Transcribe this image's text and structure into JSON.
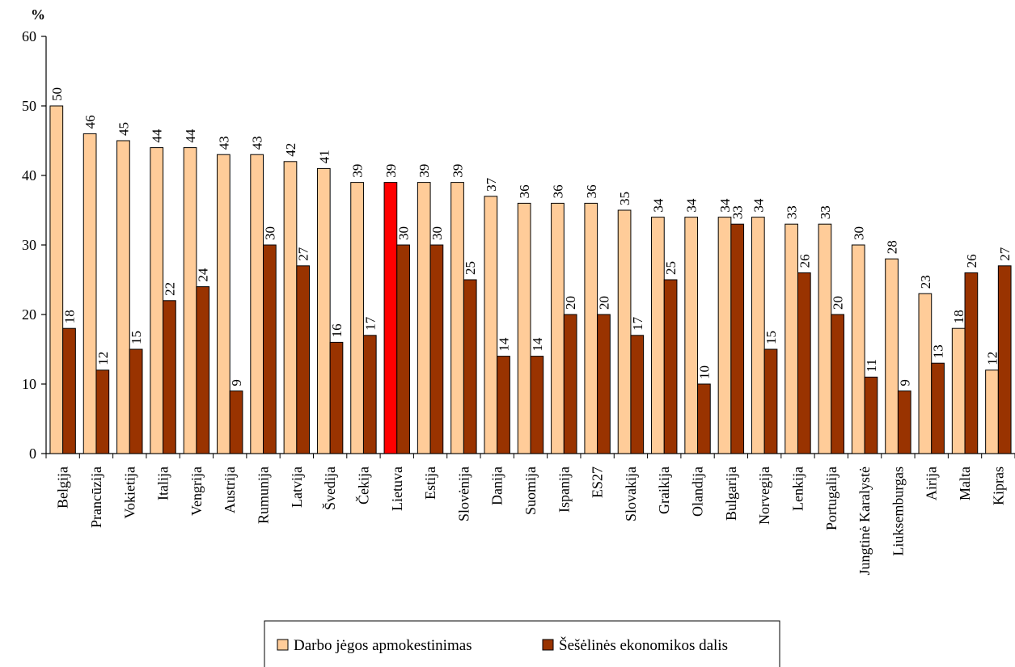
{
  "chart_data": {
    "type": "bar",
    "ylabel": "%",
    "ylim": [
      0,
      60
    ],
    "yticks": [
      0,
      10,
      20,
      30,
      40,
      50,
      60
    ],
    "categories": [
      "Belgija",
      "Prancūzija",
      "Vokietija",
      "Italija",
      "Vengrija",
      "Austrija",
      "Rumunija",
      "Latvija",
      "Švedija",
      "Čekija",
      "Lietuva",
      "Estija",
      "Slovėnija",
      "Danija",
      "Suomija",
      "Ispanija",
      "ES27",
      "Slovakija",
      "Graikija",
      "Olandija",
      "Bulgarija",
      "Norvegija",
      "Lenkija",
      "Portugalija",
      "Jungtinė Karalystė",
      "Liuksemburgas",
      "Airija",
      "Malta",
      "Kipras"
    ],
    "series": [
      {
        "name": "Darbo jėgos apmokestinimas",
        "color": "#FFCC99",
        "highlight": {
          "category": "Lietuva",
          "color": "#FF0000"
        },
        "values": [
          50,
          46,
          45,
          44,
          44,
          43,
          43,
          42,
          41,
          39,
          39,
          39,
          39,
          37,
          36,
          36,
          36,
          35,
          34,
          34,
          34,
          34,
          33,
          33,
          30,
          28,
          23,
          18,
          12
        ]
      },
      {
        "name": "Šešėlinės ekonomikos dalis",
        "color": "#993300",
        "values": [
          18,
          12,
          15,
          22,
          24,
          9,
          30,
          27,
          16,
          17,
          30,
          30,
          25,
          14,
          14,
          20,
          20,
          17,
          25,
          10,
          33,
          15,
          26,
          20,
          11,
          9,
          13,
          26,
          27
        ]
      }
    ],
    "grid": false,
    "legend_position": "bottom"
  }
}
